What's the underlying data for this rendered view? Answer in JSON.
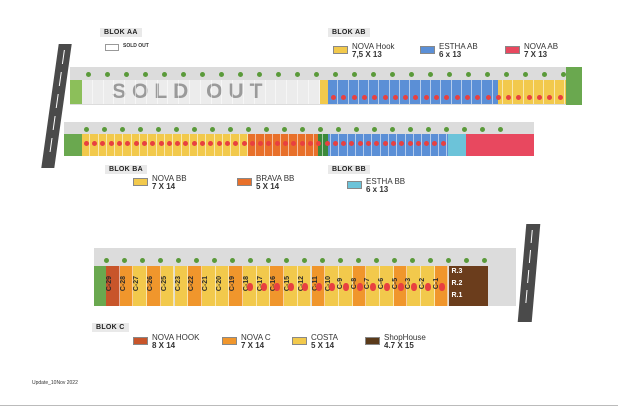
{
  "blocks": {
    "aa": {
      "tag": "BLOK AA",
      "legend": [
        {
          "name": "SOLD OUT",
          "dims": "",
          "color": "#ffffff"
        }
      ],
      "overlay": "SOLD OUT"
    },
    "ab": {
      "tag": "BLOK AB",
      "legend": [
        {
          "name": "NOVA Hook",
          "dims": "7,5 X 13",
          "color": "#f2c94c"
        },
        {
          "name": "ESTHA AB",
          "dims": "6 x 13",
          "color": "#5b8fd6"
        },
        {
          "name": "NOVA AB",
          "dims": "7 X 13",
          "color": "#e8485f"
        }
      ]
    },
    "ba": {
      "tag": "BLOK BA",
      "legend": [
        {
          "name": "NOVA BB",
          "dims": "7 X 14",
          "color": "#f2c94c"
        },
        {
          "name": "BRAVA BB",
          "dims": "5 X 14",
          "color": "#e8702a"
        }
      ]
    },
    "bb": {
      "tag": "BLOK BB",
      "legend": [
        {
          "name": "ESTHA BB",
          "dims": "6 x 13",
          "color": "#6cc3d9"
        }
      ]
    },
    "c": {
      "tag": "BLOK C",
      "legend": [
        {
          "name": "NOVA HOOK",
          "dims": "8 X 14",
          "color": "#c8552a"
        },
        {
          "name": "NOVA C",
          "dims": "7 X 14",
          "color": "#f0962c"
        },
        {
          "name": "COSTA",
          "dims": "5 X 14",
          "color": "#f2c94c"
        },
        {
          "name": "ShopHouse",
          "dims": "4.7 X 15",
          "color": "#5a3a1a"
        }
      ],
      "lots": [
        "C-29",
        "C-28",
        "C-27",
        "C-26",
        "C-25",
        "C-23",
        "C-22",
        "C-21",
        "C-20",
        "C-19",
        "C-18",
        "C-17",
        "C-16",
        "C-15",
        "C-12",
        "C-11",
        "C-10",
        "C-9",
        "C-8",
        "C-7",
        "C-6",
        "C-5",
        "C-3",
        "C-2",
        "C-1"
      ],
      "shophouses": [
        "R.3",
        "R.2",
        "R.1"
      ]
    }
  },
  "footer": {
    "update": "Update_10Nov 2022"
  },
  "colors": {
    "road": "#4a4a4a",
    "sold": "#e6e6e6",
    "dot": "#e84040",
    "tree": "#5a9a3a"
  }
}
